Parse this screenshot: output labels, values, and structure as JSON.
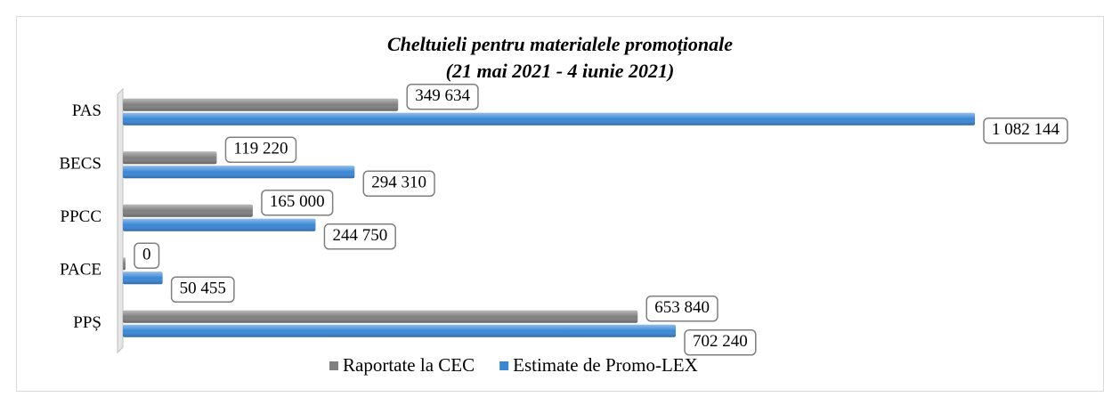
{
  "chart_data": {
    "type": "bar",
    "orientation": "horizontal",
    "title": "Cheltuieli pentru materialele promoționale",
    "subtitle": "(21 mai 2021 - 4 iunie 2021)",
    "categories": [
      "PAS",
      "BECS",
      "PPCC",
      "PACE",
      "PPȘ"
    ],
    "series": [
      {
        "name": "Raportate la CEC",
        "color": "#808080",
        "values": [
          349634,
          119220,
          165000,
          0,
          653840
        ],
        "value_labels": [
          "349 634",
          "119 220",
          "165 000",
          "0",
          "653 840"
        ]
      },
      {
        "name": "Estimate de Promo-LEX",
        "color": "#3a87d6",
        "values": [
          1082144,
          294310,
          244750,
          50455,
          702240
        ],
        "value_labels": [
          "1 082 144",
          "294 310",
          "244 750",
          "50 455",
          "702 240"
        ]
      }
    ],
    "legend": "bottom"
  }
}
